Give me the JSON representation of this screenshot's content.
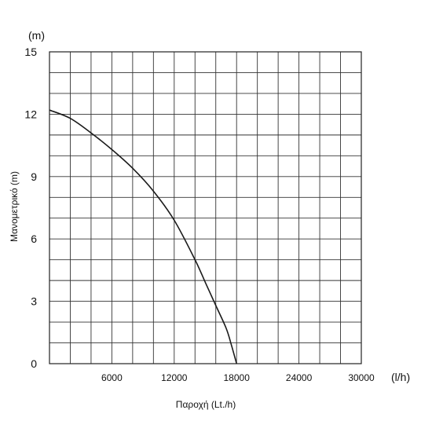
{
  "chart_data": {
    "type": "line",
    "title": "",
    "xlabel": "Παροχή (Lt./h)",
    "ylabel": "Μανομετρικό (m)",
    "x_unit": "(l/h)",
    "y_unit": "(m)",
    "xlim": [
      0,
      30000
    ],
    "ylim": [
      0,
      15
    ],
    "x_ticks": [
      {
        "value": 6000,
        "label": "6000"
      },
      {
        "value": 12000,
        "label": "12000"
      },
      {
        "value": 18000,
        "label": "18000"
      },
      {
        "value": 24000,
        "label": "24000"
      },
      {
        "value": 30000,
        "label": "30000"
      }
    ],
    "y_ticks": [
      {
        "value": 0,
        "label": "0"
      },
      {
        "value": 3,
        "label": "3"
      },
      {
        "value": 6,
        "label": "6"
      },
      {
        "value": 9,
        "label": "9"
      },
      {
        "value": 12,
        "label": "12"
      },
      {
        "value": 15,
        "label": "15"
      }
    ],
    "grid": true,
    "grid_x_step": 2000,
    "grid_y_step": 1,
    "series": [
      {
        "color": "#1a1a1a",
        "x": [
          0,
          2000,
          4000,
          6000,
          8000,
          10000,
          12000,
          14000,
          15000,
          16000,
          17000,
          17500,
          18000
        ],
        "y": [
          12.2,
          11.8,
          11.1,
          10.3,
          9.4,
          8.3,
          6.9,
          5.0,
          3.9,
          2.8,
          1.7,
          0.9,
          0
        ]
      }
    ]
  }
}
